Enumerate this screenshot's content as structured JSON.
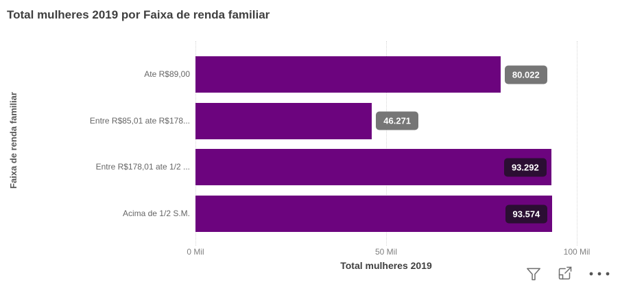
{
  "title": "Total mulheres 2019 por Faixa de renda familiar",
  "chart_data": {
    "type": "bar",
    "orientation": "horizontal",
    "title": "Total mulheres 2019 por Faixa de renda familiar",
    "categories": [
      "Ate R$89,00",
      "Entre R$85,01 ate R$178...",
      "Entre R$178,01 ate 1/2 ...",
      "Acima de 1/2 S.M."
    ],
    "values": [
      80022,
      46271,
      93292,
      93574
    ],
    "value_labels": [
      "80.022",
      "46.271",
      "93.292",
      "93.574"
    ],
    "label_placement": [
      "outside",
      "outside",
      "inside",
      "inside"
    ],
    "xlabel": "Total mulheres 2019",
    "ylabel": "Faixa de renda familiar",
    "xlim": [
      0,
      100000
    ],
    "x_ticks": [
      {
        "label": "0 Mil",
        "value": 0
      },
      {
        "label": "50 Mil",
        "value": 50000
      },
      {
        "label": "100 Mil",
        "value": 100000
      }
    ],
    "grid": "vertical-dotted",
    "legend": "none",
    "colors": {
      "bar": "#6C047E",
      "outside_label_bg": "#767676",
      "inside_label_bg": "#2B0E33",
      "label_text": "#ffffff",
      "gridline": "#d6d6d6",
      "title_text": "#3f3f3f",
      "axis_text": "#808080",
      "category_text": "#666666"
    }
  },
  "toolbar": {
    "filter_icon": "filter",
    "focus_icon": "focus-mode",
    "more_icon": "more-options"
  }
}
